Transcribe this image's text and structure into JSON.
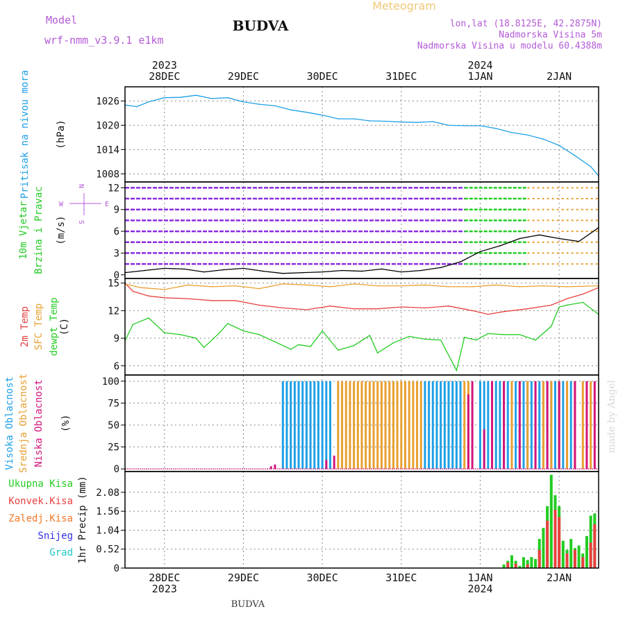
{
  "header": {
    "model_label": "Model",
    "model_name": "wrf-nmm_v3.9.1  e1km",
    "station": "BUDVA",
    "meteogram": "Meteogram",
    "lonlat": "lon,lat (18.8125E, 42.2875N)",
    "elevation": "Nadmorska Visina 5m",
    "model_elevation": "Nadmorska Visina u modelu 60.4388m",
    "footer_station": "BUDVA",
    "watermark": "made by Angel"
  },
  "time_axis": {
    "top_years": [
      {
        "label": "2023",
        "day": 0
      },
      {
        "label": "2024",
        "day": 4
      }
    ],
    "bottom_years": [
      {
        "label": "2023",
        "day": 0
      },
      {
        "label": "2024",
        "day": 4
      }
    ],
    "days": [
      "28DEC",
      "29DEC",
      "30DEC",
      "31DEC",
      "1JAN",
      "2JAN"
    ],
    "range_days": [
      -0.5,
      5.5
    ]
  },
  "colors": {
    "pressure": "#1ea0e6",
    "t2m": "#e84040",
    "sfc": "#e8a030",
    "dew": "#22cc22",
    "high_cloud": "#1ea0e6",
    "mid_cloud": "#e8a030",
    "low_cloud": "#d4147a",
    "total_precip": "#22cc22",
    "conv_precip": "#e84040",
    "frozen_precip": "#f07828",
    "snow": "#3030e0",
    "graupel": "#20c8c8",
    "wind_lines": "#8a2be2"
  },
  "chart_data": [
    {
      "type": "line",
      "panel": "pressure",
      "ylabel_lines": [
        "Pritisak na nivou mora"
      ],
      "unit": "(hPa)",
      "yticks": [
        1008,
        1014,
        1020,
        1026
      ],
      "ylim": [
        1006,
        1029.5
      ],
      "grid": true,
      "series": [
        {
          "x": [
            -0.5,
            -0.35,
            -0.2,
            0.0,
            0.2,
            0.4,
            0.6,
            0.8,
            1.0,
            1.2,
            1.4,
            1.6,
            1.8,
            2.0,
            2.2,
            2.4,
            2.6,
            2.8,
            3.0,
            3.2,
            3.4,
            3.6,
            3.8,
            4.0,
            4.2,
            4.4,
            4.6,
            4.8,
            5.0,
            5.2,
            5.4,
            5.5
          ],
          "y": [
            1025,
            1024.6,
            1025.8,
            1026.8,
            1026.9,
            1027.4,
            1026.6,
            1026.8,
            1025.8,
            1025.2,
            1024.8,
            1023.8,
            1023.2,
            1022.5,
            1021.6,
            1021.6,
            1021.1,
            1021,
            1020.8,
            1020.7,
            1020.9,
            1020,
            1019.9,
            1019.9,
            1019.2,
            1018.2,
            1017.6,
            1016.6,
            1015,
            1012.5,
            1009.8,
            1007.5
          ]
        }
      ]
    },
    {
      "type": "line",
      "panel": "wind",
      "ylabel_lines": [
        "10m Vjetar",
        "Brzina i Pravac"
      ],
      "unit": "(m/s)",
      "yticks": [
        0,
        3,
        6,
        9,
        12
      ],
      "ylim": [
        -0.5,
        12.8
      ],
      "compass": [
        "N",
        "E",
        "S",
        "W"
      ],
      "series": [
        {
          "name": "speed",
          "x": [
            -0.5,
            -0.25,
            0.0,
            0.25,
            0.5,
            0.75,
            1.0,
            1.25,
            1.5,
            1.75,
            2.0,
            2.25,
            2.5,
            2.75,
            3.0,
            3.25,
            3.5,
            3.75,
            4.0,
            4.25,
            4.5,
            4.75,
            5.0,
            5.25,
            5.5
          ],
          "y": [
            0.3,
            0.6,
            0.9,
            0.8,
            0.4,
            0.7,
            0.9,
            0.5,
            0.2,
            0.3,
            0.4,
            0.6,
            0.5,
            0.8,
            0.4,
            0.6,
            1.0,
            1.8,
            3.2,
            4.0,
            5.0,
            5.5,
            5.0,
            4.6,
            6.5
          ]
        }
      ]
    },
    {
      "type": "line",
      "panel": "temperature",
      "ylabel_lines": [
        "2m Temp",
        "SFC Temp",
        "dewpt Temp"
      ],
      "unit": "(C)",
      "yticks": [
        6,
        9,
        12,
        15
      ],
      "ylim": [
        5,
        15.5
      ],
      "grid": true,
      "series": [
        {
          "name": "2m Temp",
          "x": [
            -0.5,
            -0.4,
            -0.2,
            0.0,
            0.3,
            0.6,
            0.9,
            1.2,
            1.5,
            1.8,
            2.1,
            2.4,
            2.7,
            3.0,
            3.3,
            3.6,
            3.9,
            4.1,
            4.3,
            4.6,
            4.9,
            5.1,
            5.3,
            5.5
          ],
          "y": [
            15,
            14.1,
            13.6,
            13.4,
            13.3,
            13.1,
            13.1,
            12.6,
            12.3,
            12.1,
            12.5,
            12.2,
            12.2,
            12.4,
            12.3,
            12.5,
            12.0,
            11.6,
            11.9,
            12.2,
            12.6,
            13.3,
            13.8,
            14.5
          ]
        },
        {
          "name": "SFC Temp",
          "x": [
            -0.5,
            -0.3,
            0.0,
            0.3,
            0.6,
            0.9,
            1.2,
            1.5,
            1.8,
            2.1,
            2.4,
            2.7,
            3.0,
            3.3,
            3.6,
            3.9,
            4.2,
            4.5,
            4.8,
            5.1,
            5.5
          ],
          "y": [
            14.9,
            14.5,
            14.3,
            14.8,
            14.6,
            14.7,
            14.4,
            14.9,
            14.8,
            14.6,
            14.9,
            14.7,
            14.7,
            14.8,
            14.6,
            14.6,
            14.8,
            14.6,
            14.7,
            14.6,
            14.7
          ]
        },
        {
          "name": "dewpt Temp",
          "x": [
            -0.5,
            -0.4,
            -0.2,
            0.0,
            0.2,
            0.4,
            0.5,
            0.7,
            0.8,
            1.0,
            1.2,
            1.4,
            1.6,
            1.7,
            1.85,
            2.0,
            2.2,
            2.4,
            2.6,
            2.7,
            2.9,
            3.1,
            3.3,
            3.5,
            3.7,
            3.8,
            3.95,
            4.1,
            4.3,
            4.5,
            4.7,
            4.9,
            5.0,
            5.1,
            5.3,
            5.5
          ],
          "y": [
            8.7,
            10.5,
            11.2,
            9.6,
            9.4,
            9.0,
            8.0,
            9.6,
            10.6,
            9.8,
            9.4,
            8.6,
            7.8,
            8.3,
            8.1,
            9.8,
            7.7,
            8.2,
            9.3,
            7.4,
            8.5,
            9.2,
            8.9,
            8.8,
            5.5,
            9.1,
            8.8,
            9.5,
            9.4,
            9.4,
            8.8,
            10.3,
            12.4,
            12.6,
            12.9,
            11.6
          ]
        }
      ]
    },
    {
      "type": "bar",
      "panel": "clouds",
      "ylabel_lines": [
        "Visoka Oblacnost",
        "Srednja Oblacnost",
        "Niska Oblacnost"
      ],
      "unit": "(%)",
      "yticks": [
        0,
        25,
        50,
        75,
        100
      ],
      "ylim": [
        -3,
        107
      ],
      "grid": true,
      "series": [
        {
          "name": "Visoka Oblacnost",
          "x": [
            1.5,
            1.55,
            1.6,
            1.65,
            1.7,
            1.75,
            1.8,
            1.85,
            1.9,
            1.95,
            2.0,
            2.05,
            2.1,
            3.3,
            3.35,
            3.4,
            3.45,
            3.5,
            3.55,
            3.6,
            3.65,
            3.7,
            3.75,
            4.0,
            4.05,
            4.1,
            4.2,
            4.25,
            4.3,
            4.35,
            4.4,
            4.45,
            4.5,
            4.55,
            4.6,
            4.65,
            4.7,
            4.75,
            4.8,
            4.85,
            4.9,
            4.95,
            5.0,
            5.05,
            5.1,
            5.15
          ],
          "y": [
            100,
            100,
            100,
            100,
            100,
            100,
            100,
            100,
            100,
            100,
            100,
            100,
            100,
            100,
            100,
            100,
            100,
            100,
            100,
            100,
            100,
            100,
            100,
            100,
            100,
            100,
            100,
            100,
            100,
            100,
            100,
            100,
            100,
            100,
            100,
            100,
            100,
            100,
            100,
            100,
            100,
            100,
            100,
            100,
            100,
            100
          ]
        },
        {
          "name": "Srednja Oblacnost",
          "x": [
            2.2,
            2.25,
            2.3,
            2.35,
            2.4,
            2.45,
            2.5,
            2.55,
            2.6,
            2.65,
            2.7,
            2.75,
            2.8,
            2.85,
            2.9,
            2.95,
            3.0,
            3.05,
            3.1,
            3.15,
            3.2,
            3.25,
            3.8,
            3.85,
            4.4,
            4.6,
            4.8,
            4.9,
            5.0,
            5.1,
            5.2,
            5.3,
            5.4
          ],
          "y": [
            100,
            100,
            100,
            100,
            100,
            100,
            100,
            100,
            100,
            100,
            100,
            100,
            100,
            100,
            100,
            100,
            100,
            100,
            100,
            100,
            100,
            100,
            100,
            100,
            100,
            100,
            100,
            100,
            100,
            100,
            100,
            100,
            100
          ]
        },
        {
          "name": "Niska Oblacnost",
          "x": [
            1.35,
            1.4,
            2.05,
            2.15,
            3.85,
            3.9,
            4.05,
            4.15,
            4.3,
            4.5,
            4.7,
            4.85,
            5.0,
            5.2,
            5.35,
            5.45
          ],
          "y": [
            3,
            5,
            10,
            15,
            85,
            100,
            45,
            100,
            100,
            100,
            100,
            100,
            100,
            100,
            100,
            100
          ]
        }
      ]
    },
    {
      "type": "bar",
      "panel": "precipitation",
      "ylabel_lines": [
        "Ukupna Kisa",
        "Konvek.Kisa",
        "Zaledj.Kisa",
        "Snijeg",
        "Grad"
      ],
      "unit": "1hr Precip (mm)",
      "yticks": [
        0,
        0.52,
        1.04,
        1.56,
        2.08
      ],
      "ylim": [
        0,
        2.65
      ],
      "grid": true,
      "series": [
        {
          "name": "Ukupna Kisa",
          "x": [
            4.3,
            4.35,
            4.4,
            4.45,
            4.5,
            4.55,
            4.6,
            4.65,
            4.7,
            4.75,
            4.8,
            4.85,
            4.9,
            4.95,
            5.0,
            5.05,
            5.1,
            5.15,
            5.2,
            5.25,
            5.3,
            5.35,
            5.4,
            5.45
          ],
          "y": [
            0.1,
            0.2,
            0.35,
            0.2,
            0.06,
            0.3,
            0.22,
            0.3,
            0.25,
            0.8,
            1.1,
            1.7,
            2.56,
            2.0,
            1.7,
            0.75,
            0.5,
            0.8,
            0.55,
            0.62,
            0.4,
            0.88,
            1.44,
            1.5
          ]
        },
        {
          "name": "Konvek.Kisa",
          "x": [
            4.35,
            4.45,
            4.6,
            4.75,
            4.85,
            4.95,
            5.0,
            5.1,
            5.2,
            5.3,
            5.4,
            5.45
          ],
          "y": [
            0.15,
            0.12,
            0.1,
            0.5,
            1.3,
            1.6,
            1.4,
            0.4,
            0.5,
            0.3,
            0.7,
            1.2
          ]
        }
      ]
    }
  ]
}
